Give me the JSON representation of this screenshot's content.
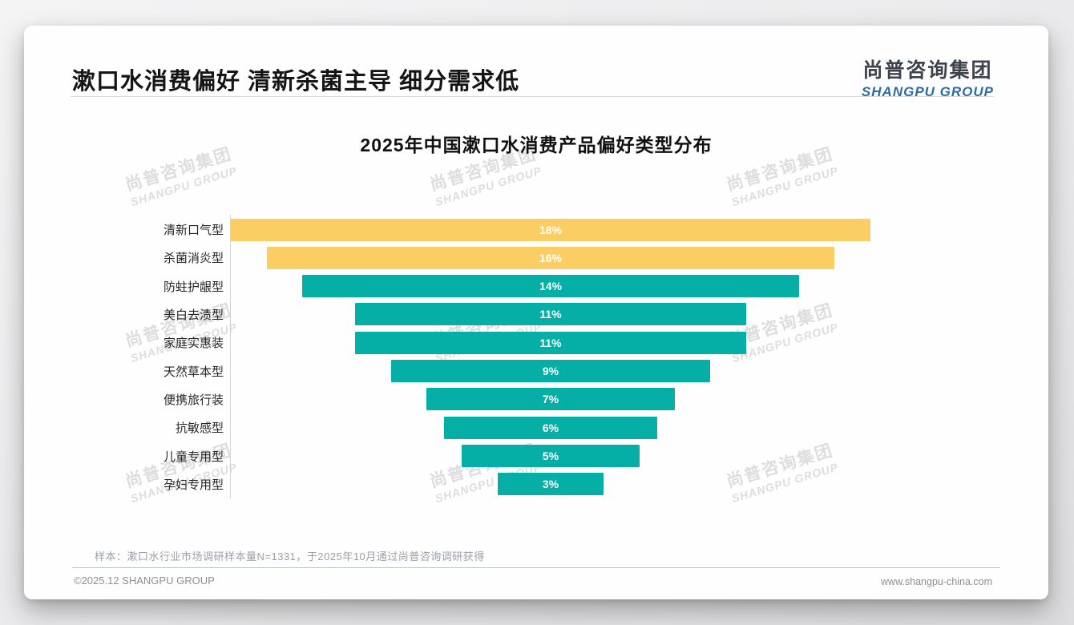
{
  "header": {
    "title": "漱口水消费偏好 清新杀菌主导 细分需求低"
  },
  "logo": {
    "cn": "尚普咨询集团",
    "en": "SHANGPU GROUP",
    "cn_color": "#3d434d",
    "en_color": "#2f6ba8"
  },
  "watermark": {
    "line1": "尚普咨询集团",
    "line2": "SHANGPU GROUP"
  },
  "chart_data": {
    "type": "bar",
    "subtype": "horizontal-centered-funnel",
    "title": "2025年中国漱口水消费产品偏好类型分布",
    "unit": "%",
    "categories": [
      "清新口气型",
      "杀菌消炎型",
      "防蛀护龈型",
      "美白去渍型",
      "家庭实惠装",
      "天然草本型",
      "便携旅行装",
      "抗敏感型",
      "儿童专用型",
      "孕妇专用型"
    ],
    "values": [
      18,
      16,
      14,
      11,
      11,
      9,
      7,
      6,
      5,
      3
    ],
    "value_labels": [
      "18%",
      "16%",
      "14%",
      "11%",
      "11%",
      "9%",
      "7%",
      "6%",
      "5%",
      "3%"
    ],
    "highlight_indices": [
      0,
      1
    ],
    "colors": {
      "highlight": "#FBCE63",
      "default": "#05AFA5",
      "value_text": "#ffffff"
    },
    "xlim": [
      0,
      18
    ],
    "grid": false,
    "legend": "none"
  },
  "note": "样本：漱口水行业市场调研样本量N=1331，于2025年10月通过尚普咨询调研获得",
  "footer": {
    "left": "©2025.12 SHANGPU GROUP",
    "right": "www.shangpu-china.com"
  }
}
